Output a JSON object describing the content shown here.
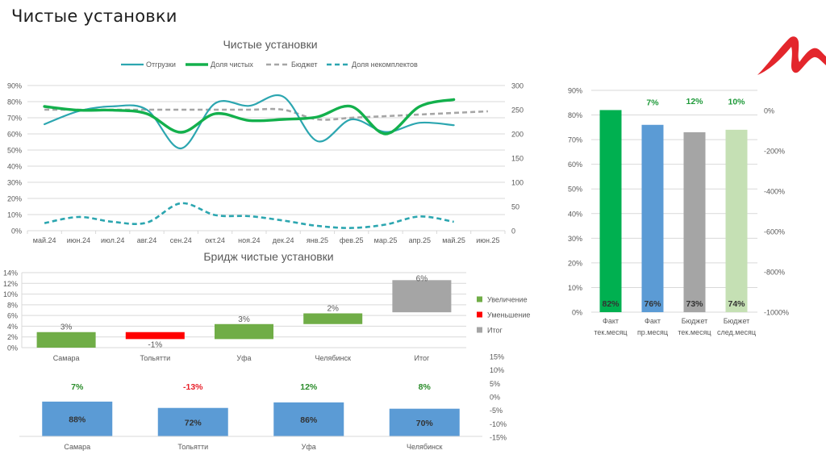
{
  "page": {
    "title": "Чистые установки"
  },
  "logo": {
    "icon": "brand-m-swoosh",
    "color": "#e3262c"
  },
  "chart_data": [
    {
      "type": "line",
      "title": "Чистые установки",
      "xlabel": "",
      "ylabel": "",
      "categories": [
        "май.24",
        "июн.24",
        "июл.24",
        "авг.24",
        "сен.24",
        "окт.24",
        "ноя.24",
        "дек.24",
        "янв.25",
        "фев.25",
        "мар.25",
        "апр.25",
        "май.25",
        "июн.25"
      ],
      "y_left": {
        "min": 0,
        "max": 90,
        "ticks": [
          0,
          10,
          20,
          30,
          40,
          50,
          60,
          70,
          80,
          90
        ],
        "tick_labels": [
          "0%",
          "10%",
          "20%",
          "30%",
          "40%",
          "50%",
          "60%",
          "70%",
          "80%",
          "90%"
        ]
      },
      "y_right": {
        "min": 0,
        "max": 300,
        "ticks": [
          0,
          50,
          100,
          150,
          200,
          250,
          300
        ],
        "tick_labels": [
          "0",
          "50",
          "100",
          "150",
          "200",
          "250",
          "300"
        ]
      },
      "grid": true,
      "legend_position": "top",
      "series": [
        {
          "name": "Отгрузки",
          "axis": "right",
          "style": "solid",
          "weight": "normal",
          "color": "#2ca6b0",
          "values": [
            220,
            247,
            257,
            250,
            170,
            263,
            258,
            277,
            185,
            230,
            204,
            223,
            218
          ]
        },
        {
          "name": "Доля чистых",
          "axis": "left",
          "style": "solid",
          "weight": "thick",
          "color": "#13b04c",
          "values": [
            77,
            74.7,
            74.7,
            72.5,
            61,
            72.5,
            68.3,
            69,
            70.5,
            77,
            60,
            77,
            81.3
          ]
        },
        {
          "name": "Бюджет",
          "axis": "left",
          "style": "dashed",
          "weight": "normal",
          "color": "#a6a6a6",
          "values": [
            75,
            75,
            75,
            75,
            75,
            75,
            75,
            75,
            69,
            70,
            71,
            72,
            73,
            74
          ]
        },
        {
          "name": "Доля некомплектов",
          "axis": "left",
          "style": "dashed",
          "weight": "normal",
          "color": "#2ca6b0",
          "values": [
            4.7,
            8.5,
            5.5,
            5,
            17,
            9.7,
            9,
            6.3,
            3,
            1.7,
            3.8,
            8.8,
            5.5
          ]
        }
      ]
    },
    {
      "type": "bar",
      "subtype": "waterfall",
      "title": "Бридж чистые установки",
      "categories": [
        "Самара",
        "Тольятти",
        "Уфа",
        "Челябинск",
        "Итог"
      ],
      "values": [
        3,
        -1,
        3,
        2,
        6
      ],
      "value_labels": [
        "3%",
        "-1%",
        "3%",
        "2%",
        "6%"
      ],
      "ranges": [
        {
          "start": 0,
          "end": 2.9
        },
        {
          "start": 2.9,
          "end": 1.6
        },
        {
          "start": 1.6,
          "end": 4.4
        },
        {
          "start": 4.4,
          "end": 6.4
        },
        {
          "start": 6.6,
          "end": 12.6
        }
      ],
      "kinds": [
        "increase",
        "decrease",
        "increase",
        "increase",
        "total"
      ],
      "ylim": [
        0,
        14
      ],
      "y_ticks": [
        0,
        2,
        4,
        6,
        8,
        10,
        12,
        14
      ],
      "y_tick_labels": [
        "0%",
        "2%",
        "4%",
        "6%",
        "8%",
        "10%",
        "12%",
        "14%"
      ],
      "grid": true,
      "legend_position": "right",
      "legend": [
        {
          "key": "increase",
          "name": "Увеличение",
          "color": "#70ad47"
        },
        {
          "key": "decrease",
          "name": "Уменьшение",
          "color": "#ff0000"
        },
        {
          "key": "total",
          "name": "Итог",
          "color": "#a5a5a5"
        }
      ]
    },
    {
      "type": "bar",
      "title": "",
      "categories": [
        "Самара",
        "Тольятти",
        "Уфа",
        "Челябинск"
      ],
      "values": [
        88,
        72,
        86,
        70
      ],
      "value_labels": [
        "88%",
        "72%",
        "86%",
        "70%"
      ],
      "change_values": [
        7,
        -13,
        12,
        8
      ],
      "change_labels": [
        "7%",
        "-13%",
        "12%",
        "8%"
      ],
      "bar_color": "#5b9bd5",
      "positive_color": "#2a8c2a",
      "negative_color": "#e8202a",
      "y_right": {
        "min": -15,
        "max": 15,
        "ticks": [
          15,
          10,
          5,
          0,
          -5,
          -10,
          -15
        ],
        "tick_labels": [
          "15%",
          "10%",
          "5%",
          "0%",
          "-5%",
          "-10%",
          "-15%"
        ]
      }
    },
    {
      "type": "bar",
      "title": "",
      "categories": [
        [
          "Факт",
          "тек.месяц"
        ],
        [
          "Факт",
          "пр.месяц"
        ],
        [
          "Бюджет",
          "тек.месяц"
        ],
        [
          "Бюджет",
          "след.месяц"
        ]
      ],
      "values": [
        82,
        76,
        73,
        74
      ],
      "value_labels": [
        "82%",
        "76%",
        "73%",
        "74%"
      ],
      "colors": [
        "#00b050",
        "#5b9bd5",
        "#a5a5a5",
        "#c5e0b4"
      ],
      "change_values": [
        null,
        7,
        12,
        10
      ],
      "change_labels": [
        "",
        "7%",
        "12%",
        "10%"
      ],
      "change_color": "#1f9a3a",
      "y_left": {
        "min": 0,
        "max": 90,
        "ticks": [
          0,
          10,
          20,
          30,
          40,
          50,
          60,
          70,
          80,
          90
        ],
        "tick_labels": [
          "0%",
          "10%",
          "20%",
          "30%",
          "40%",
          "50%",
          "60%",
          "70%",
          "80%",
          "90%"
        ]
      },
      "y_right": {
        "min": -1000,
        "max": 100,
        "ticks": [
          0,
          -200,
          -400,
          -600,
          -800,
          -1000
        ],
        "tick_labels": [
          "0%",
          "-200%",
          "-400%",
          "-600%",
          "-800%",
          "-1000%"
        ]
      },
      "grid": true
    }
  ]
}
